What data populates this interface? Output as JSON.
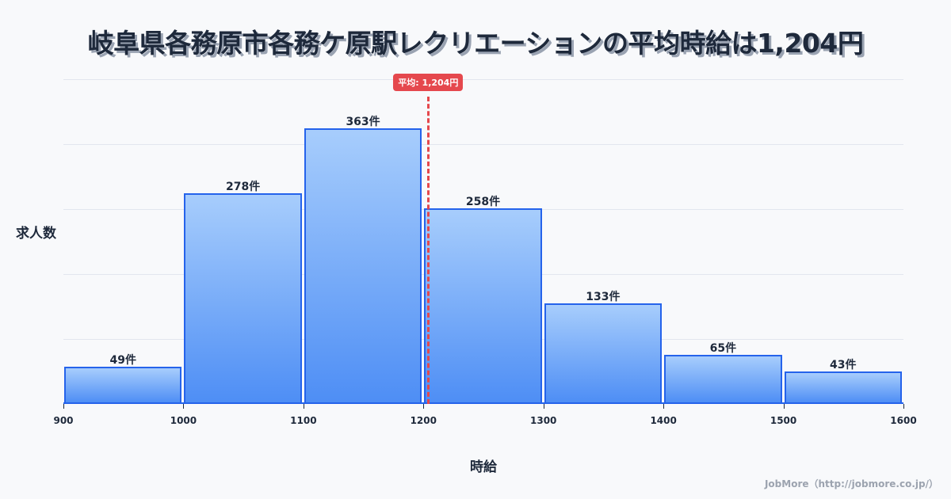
{
  "title": "岐阜県各務原市各務ケ原駅レクリエーションの平均時給は1,204円",
  "footer": "JobMore（http://jobmore.co.jp/）",
  "chart_data": {
    "type": "bar",
    "title": "岐阜県各務原市各務ケ原駅レクリエーションの平均時給は1,204円",
    "xlabel": "時給",
    "ylabel": "求人数",
    "x_ticks": [
      "900",
      "1000",
      "1100",
      "1200",
      "1300",
      "1400",
      "1500",
      "1600"
    ],
    "categories": [
      "900-1000",
      "1000-1100",
      "1100-1200",
      "1200-1300",
      "1300-1400",
      "1400-1500",
      "1500-1600"
    ],
    "values": [
      49,
      278,
      363,
      258,
      133,
      65,
      43
    ],
    "value_labels": [
      "49件",
      "278件",
      "363件",
      "258件",
      "133件",
      "65件",
      "43件"
    ],
    "xlim": [
      900,
      1600
    ],
    "ylim": [
      0,
      428
    ],
    "grid": true,
    "mean": {
      "value": 1204,
      "label": "平均: 1,204円",
      "color": "#e5484d"
    },
    "bar_color": "#2563eb"
  }
}
